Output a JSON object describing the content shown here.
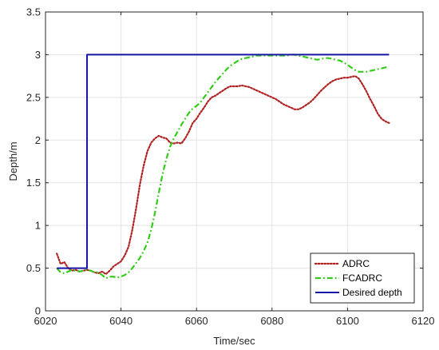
{
  "chart_data": {
    "type": "line",
    "title": "",
    "xlabel": "Time/sec",
    "ylabel": "Depth/m",
    "xlim": [
      6020,
      6120
    ],
    "ylim": [
      0,
      3.5
    ],
    "xticks": [
      6020,
      6040,
      6060,
      6080,
      6100,
      6120
    ],
    "yticks": [
      0,
      0.5,
      1,
      1.5,
      2,
      2.5,
      3,
      3.5
    ],
    "xtick_labels": [
      "6020",
      "6040",
      "6060",
      "6080",
      "6100",
      "6120"
    ],
    "ytick_labels": [
      "0",
      "0.5",
      "1",
      "1.5",
      "2",
      "2.5",
      "3",
      "3.5"
    ],
    "grid": true,
    "legend_position": "bottom-right",
    "series": [
      {
        "name": "ADRC",
        "color": "#b22222",
        "style": "dotted",
        "points": [
          [
            6023,
            0.67
          ],
          [
            6024,
            0.55
          ],
          [
            6025,
            0.57
          ],
          [
            6026,
            0.5
          ],
          [
            6027,
            0.47
          ],
          [
            6028,
            0.48
          ],
          [
            6029,
            0.46
          ],
          [
            6030,
            0.47
          ],
          [
            6031,
            0.48
          ],
          [
            6032,
            0.47
          ],
          [
            6033,
            0.45
          ],
          [
            6034,
            0.44
          ],
          [
            6035,
            0.46
          ],
          [
            6036,
            0.43
          ],
          [
            6037,
            0.47
          ],
          [
            6038,
            0.52
          ],
          [
            6039,
            0.55
          ],
          [
            6040,
            0.58
          ],
          [
            6041,
            0.65
          ],
          [
            6042,
            0.75
          ],
          [
            6043,
            0.95
          ],
          [
            6044,
            1.2
          ],
          [
            6045,
            1.48
          ],
          [
            6046,
            1.7
          ],
          [
            6047,
            1.87
          ],
          [
            6048,
            1.97
          ],
          [
            6049,
            2.02
          ],
          [
            6050,
            2.05
          ],
          [
            6051,
            2.03
          ],
          [
            6052,
            2.02
          ],
          [
            6053,
            1.97
          ],
          [
            6054,
            1.96
          ],
          [
            6055,
            1.97
          ],
          [
            6056,
            1.96
          ],
          [
            6057,
            2.02
          ],
          [
            6058,
            2.1
          ],
          [
            6059,
            2.2
          ],
          [
            6060,
            2.25
          ],
          [
            6061,
            2.32
          ],
          [
            6062,
            2.38
          ],
          [
            6063,
            2.45
          ],
          [
            6064,
            2.5
          ],
          [
            6065,
            2.52
          ],
          [
            6066,
            2.55
          ],
          [
            6067,
            2.58
          ],
          [
            6068,
            2.61
          ],
          [
            6069,
            2.63
          ],
          [
            6070,
            2.63
          ],
          [
            6071,
            2.63
          ],
          [
            6072,
            2.64
          ],
          [
            6073,
            2.63
          ],
          [
            6074,
            2.62
          ],
          [
            6075,
            2.6
          ],
          [
            6076,
            2.58
          ],
          [
            6077,
            2.56
          ],
          [
            6078,
            2.54
          ],
          [
            6079,
            2.52
          ],
          [
            6080,
            2.5
          ],
          [
            6081,
            2.48
          ],
          [
            6082,
            2.45
          ],
          [
            6083,
            2.42
          ],
          [
            6084,
            2.4
          ],
          [
            6085,
            2.38
          ],
          [
            6086,
            2.36
          ],
          [
            6087,
            2.36
          ],
          [
            6088,
            2.38
          ],
          [
            6089,
            2.41
          ],
          [
            6090,
            2.44
          ],
          [
            6091,
            2.48
          ],
          [
            6092,
            2.53
          ],
          [
            6093,
            2.58
          ],
          [
            6094,
            2.62
          ],
          [
            6095,
            2.66
          ],
          [
            6096,
            2.69
          ],
          [
            6097,
            2.71
          ],
          [
            6098,
            2.72
          ],
          [
            6099,
            2.73
          ],
          [
            6100,
            2.73
          ],
          [
            6101,
            2.74
          ],
          [
            6102,
            2.75
          ],
          [
            6103,
            2.72
          ],
          [
            6104,
            2.65
          ],
          [
            6105,
            2.57
          ],
          [
            6106,
            2.48
          ],
          [
            6107,
            2.4
          ],
          [
            6108,
            2.31
          ],
          [
            6109,
            2.25
          ],
          [
            6110,
            2.22
          ],
          [
            6111,
            2.2
          ]
        ]
      },
      {
        "name": "FCADRC",
        "color": "#33cc1a",
        "style": "dashdot",
        "points": [
          [
            6023,
            0.5
          ],
          [
            6024,
            0.45
          ],
          [
            6025,
            0.44
          ],
          [
            6026,
            0.46
          ],
          [
            6027,
            0.48
          ],
          [
            6028,
            0.47
          ],
          [
            6029,
            0.46
          ],
          [
            6030,
            0.47
          ],
          [
            6031,
            0.48
          ],
          [
            6032,
            0.47
          ],
          [
            6033,
            0.45
          ],
          [
            6034,
            0.45
          ],
          [
            6035,
            0.42
          ],
          [
            6036,
            0.38
          ],
          [
            6037,
            0.4
          ],
          [
            6038,
            0.4
          ],
          [
            6039,
            0.39
          ],
          [
            6040,
            0.4
          ],
          [
            6041,
            0.42
          ],
          [
            6042,
            0.45
          ],
          [
            6043,
            0.5
          ],
          [
            6044,
            0.56
          ],
          [
            6045,
            0.62
          ],
          [
            6046,
            0.7
          ],
          [
            6047,
            0.8
          ],
          [
            6048,
            0.95
          ],
          [
            6049,
            1.15
          ],
          [
            6050,
            1.38
          ],
          [
            6051,
            1.6
          ],
          [
            6052,
            1.78
          ],
          [
            6053,
            1.92
          ],
          [
            6054,
            2.02
          ],
          [
            6055,
            2.1
          ],
          [
            6056,
            2.18
          ],
          [
            6057,
            2.25
          ],
          [
            6058,
            2.32
          ],
          [
            6059,
            2.37
          ],
          [
            6060,
            2.4
          ],
          [
            6061,
            2.44
          ],
          [
            6062,
            2.5
          ],
          [
            6063,
            2.56
          ],
          [
            6064,
            2.62
          ],
          [
            6065,
            2.68
          ],
          [
            6066,
            2.73
          ],
          [
            6067,
            2.78
          ],
          [
            6068,
            2.83
          ],
          [
            6069,
            2.87
          ],
          [
            6070,
            2.9
          ],
          [
            6071,
            2.93
          ],
          [
            6072,
            2.95
          ],
          [
            6073,
            2.96
          ],
          [
            6074,
            2.97
          ],
          [
            6075,
            2.98
          ],
          [
            6076,
            2.99
          ],
          [
            6077,
            2.99
          ],
          [
            6078,
            2.99
          ],
          [
            6079,
            2.99
          ],
          [
            6080,
            2.99
          ],
          [
            6081,
            2.99
          ],
          [
            6082,
            2.99
          ],
          [
            6083,
            2.99
          ],
          [
            6084,
            2.99
          ],
          [
            6085,
            3.0
          ],
          [
            6086,
            3.0
          ],
          [
            6087,
            2.99
          ],
          [
            6088,
            2.98
          ],
          [
            6089,
            2.97
          ],
          [
            6090,
            2.96
          ],
          [
            6091,
            2.95
          ],
          [
            6092,
            2.94
          ],
          [
            6093,
            2.95
          ],
          [
            6094,
            2.96
          ],
          [
            6095,
            2.96
          ],
          [
            6096,
            2.95
          ],
          [
            6097,
            2.94
          ],
          [
            6098,
            2.93
          ],
          [
            6099,
            2.91
          ],
          [
            6100,
            2.88
          ],
          [
            6101,
            2.85
          ],
          [
            6102,
            2.82
          ],
          [
            6103,
            2.8
          ],
          [
            6104,
            2.8
          ],
          [
            6105,
            2.8
          ],
          [
            6106,
            2.81
          ],
          [
            6107,
            2.82
          ],
          [
            6108,
            2.83
          ],
          [
            6109,
            2.84
          ],
          [
            6110,
            2.85
          ],
          [
            6111,
            2.86
          ]
        ]
      },
      {
        "name": "Desired depth",
        "color": "#1515a8",
        "style": "solid",
        "points": [
          [
            6023,
            0.5
          ],
          [
            6031,
            0.5
          ],
          [
            6031,
            3.0
          ],
          [
            6111,
            3.0
          ]
        ]
      }
    ]
  }
}
